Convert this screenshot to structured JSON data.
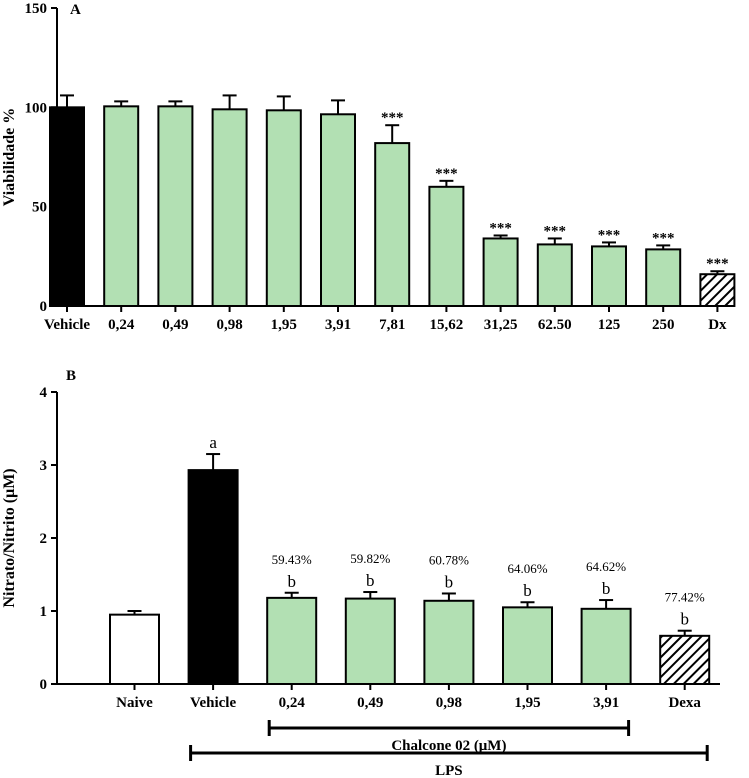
{
  "chart_data": [
    {
      "type": "bar",
      "panel": "A",
      "ylabel": "Viabilidade %",
      "ylim": [
        0,
        150
      ],
      "yticks": [
        0,
        50,
        100,
        150
      ],
      "categories": [
        "Vehicle",
        "0,24",
        "0,49",
        "0,98",
        "1,95",
        "3,91",
        "7,81",
        "15,62",
        "31,25",
        "62.50",
        "125",
        "250",
        "Dx"
      ],
      "values": [
        100,
        100.5,
        100.5,
        99,
        98.5,
        96.5,
        82,
        60,
        34,
        31,
        30,
        28.5,
        16
      ],
      "errors": [
        6,
        2.5,
        2.5,
        7,
        7,
        7,
        9,
        3,
        1.5,
        3,
        2,
        2,
        1.5
      ],
      "fills": [
        "black",
        "green",
        "green",
        "green",
        "green",
        "green",
        "green",
        "green",
        "green",
        "green",
        "green",
        "green",
        "hatch"
      ],
      "annotations": [
        "",
        "",
        "",
        "",
        "",
        "",
        "***",
        "***",
        "***",
        "***",
        "***",
        "***",
        "***"
      ]
    },
    {
      "type": "bar",
      "panel": "B",
      "ylabel": "Nitrato/Nitrito (μM)",
      "ylim": [
        0,
        4
      ],
      "yticks": [
        0,
        1,
        2,
        3,
        4
      ],
      "categories": [
        "Naive",
        "Vehicle",
        "0,24",
        "0,49",
        "0,98",
        "1,95",
        "3,91",
        "Dexa"
      ],
      "values": [
        0.95,
        2.93,
        1.18,
        1.17,
        1.14,
        1.05,
        1.03,
        0.66
      ],
      "errors": [
        0.05,
        0.22,
        0.07,
        0.09,
        0.1,
        0.07,
        0.12,
        0.07
      ],
      "fills": [
        "white",
        "black",
        "green",
        "green",
        "green",
        "green",
        "green",
        "hatch"
      ],
      "letters": [
        "",
        "a",
        "b",
        "b",
        "b",
        "b",
        "b",
        "b"
      ],
      "percents": [
        "",
        "",
        "59.43%",
        "59.82%",
        "60.78%",
        "64.06%",
        "64.62%",
        "77.42%"
      ],
      "groups": [
        {
          "label": "Chalcone 02 (μM)",
          "from": 2,
          "to": 6
        },
        {
          "label": "LPS",
          "from": 1,
          "to": 7
        }
      ]
    }
  ],
  "colors": {
    "green": "#b2e0b3",
    "black": "#000000",
    "white": "#ffffff",
    "axis": "#000000"
  }
}
